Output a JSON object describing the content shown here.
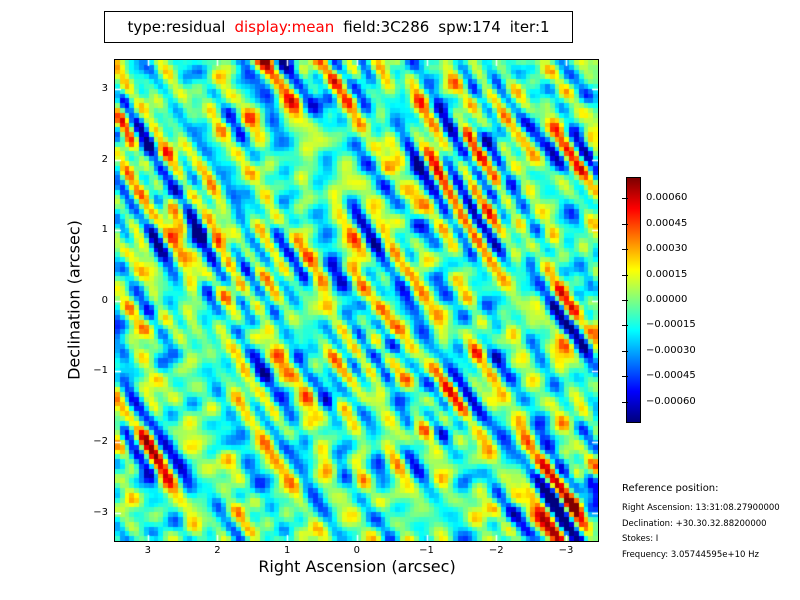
{
  "colors": {
    "accent_red": "#ff0000",
    "text": "#000000",
    "background": "#ffffff",
    "tick_mark_color": "#ffffff"
  },
  "title": {
    "segments": [
      {
        "text": "type:residual",
        "color": "#000000"
      },
      {
        "text": "display:mean",
        "color": "#ff0000"
      },
      {
        "text": "field:3C286",
        "color": "#000000"
      },
      {
        "text": "spw:174",
        "color": "#000000"
      },
      {
        "text": "iter:1",
        "color": "#000000"
      }
    ]
  },
  "axes": {
    "xlabel": "Right Ascension (arcsec)",
    "ylabel": "Declination (arcsec)",
    "x_ticks": {
      "values": [
        3,
        2,
        1,
        0,
        -1,
        -2,
        -3
      ],
      "labels": [
        "3",
        "2",
        "1",
        "0",
        "−1",
        "−2",
        "−3"
      ]
    },
    "y_ticks": {
      "values": [
        3,
        2,
        1,
        0,
        -1,
        -2,
        -3
      ],
      "labels": [
        "3",
        "2",
        "1",
        "0",
        "−1",
        "−2",
        "−3"
      ]
    },
    "x_range": [
      3.47,
      -3.46
    ],
    "y_range": [
      3.41,
      -3.4
    ]
  },
  "colorbar": {
    "colormap": "jet",
    "vmin": -0.00072,
    "vmax": 0.00072,
    "tick_values": [
      0.0006,
      0.00045,
      0.0003,
      0.00015,
      0.0,
      -0.00015,
      -0.0003,
      -0.00045,
      -0.0006
    ],
    "tick_labels": [
      "0.00060",
      "0.00045",
      "0.00030",
      "0.00015",
      "0.00000",
      "−0.00015",
      "−0.00030",
      "−0.00045",
      "−0.00060"
    ]
  },
  "reference": {
    "heading": "Reference position:",
    "lines": [
      "Right Ascension: 13:31:08.27900000",
      "Declination: +30.30.32.88200000",
      "Stokes: I",
      "Frequency: 3.05744595e+10 Hz"
    ]
  },
  "image": {
    "seed": 20,
    "grid_size": 100,
    "streak_angle_deg": 58,
    "streak_modes": 34,
    "blob_modes": 16,
    "envelope_modes": 4,
    "t_center": 0.45,
    "t_spread": 0.17
  },
  "chart_data": {
    "type": "heatmap",
    "title": "type:residual display:mean field:3C286 spw:174 iter:1",
    "xlabel": "Right Ascension (arcsec)",
    "ylabel": "Declination (arcsec)",
    "x_ticks": [
      3,
      2,
      1,
      0,
      -1,
      -2,
      -3
    ],
    "y_ticks": [
      3,
      2,
      1,
      0,
      -1,
      -2,
      -3
    ],
    "xlim": [
      3.47,
      -3.46
    ],
    "ylim": [
      -3.4,
      3.41
    ],
    "x_axis_inverted": true,
    "grid": false,
    "colormap": "jet",
    "colorbar_ticks": [
      0.0006,
      0.00045,
      0.0003,
      0.00015,
      0.0,
      -0.00015,
      -0.0003,
      -0.00045,
      -0.0006
    ],
    "value_range": [
      -0.00072,
      0.00072
    ],
    "legend_position": "right-colorbar",
    "description": "Interferometric residual map: zero-mean spatially-correlated noise (values about ±0.0006) with diagonal streaks running upper-left to lower-right; positive streaks yellow/orange/red, negative blobs cyan/blue, background green-cyan; rendered as a ~100x100 pixel raster shown with nearest-neighbour upscaling."
  }
}
